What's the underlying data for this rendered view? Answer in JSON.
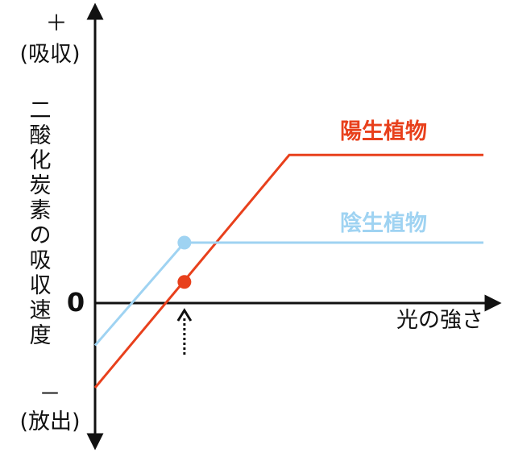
{
  "chart_data": {
    "type": "line",
    "title": "",
    "xlabel": "光の強さ",
    "ylabel_vertical": [
      "二",
      "酸",
      "化",
      "炭",
      "素",
      "の",
      "吸",
      "収",
      "速",
      "度"
    ],
    "y_positive_sign": "＋",
    "y_positive_label": "(吸収)",
    "y_negative_sign": "－",
    "y_negative_label": "(放出)",
    "zero_label": "0",
    "xlim": [
      0,
      100
    ],
    "ylim": [
      -10,
      10
    ],
    "grid": false,
    "series": [
      {
        "name": "陽生植物",
        "color": "#e8401c",
        "x": [
          0,
          50,
          100
        ],
        "y": [
          -2.8,
          4.9,
          4.9
        ],
        "point": {
          "x": 23,
          "y": 0.7
        }
      },
      {
        "name": "陰生植物",
        "color": "#9fd3f2",
        "x": [
          0,
          23,
          100
        ],
        "y": [
          -1.4,
          2.0,
          2.0
        ],
        "point": {
          "x": 23,
          "y": 2.0
        }
      }
    ],
    "annotations": [
      {
        "type": "dotted-arrow",
        "x": 23
      }
    ]
  }
}
